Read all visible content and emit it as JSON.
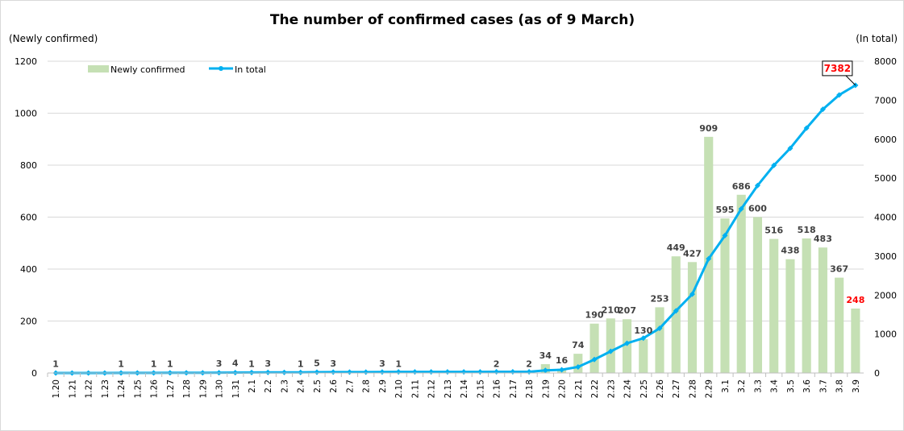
{
  "chart_data": {
    "type": "bar+line",
    "title": "The number of confirmed cases (as of 9 March)",
    "ylabel_left": "(Newly confirmed)",
    "ylabel_right": "(In total)",
    "ylim_left": [
      0,
      1200
    ],
    "ylim_right": [
      0,
      8000
    ],
    "yticks_left": [
      "0",
      "200",
      "400",
      "600",
      "800",
      "1000",
      "1200"
    ],
    "yticks_right": [
      "0",
      "1000",
      "2000",
      "3000",
      "4000",
      "5000",
      "6000",
      "7000",
      "8000"
    ],
    "grid": true,
    "legend_position": "top-left",
    "categories": [
      "1.20",
      "1.21",
      "1.22",
      "1.23",
      "1.24",
      "1.25",
      "1.26",
      "1.27",
      "1.28",
      "1.29",
      "1.30",
      "1.31",
      "2.1",
      "2.2",
      "2.3",
      "2.4",
      "2.5",
      "2.6",
      "2.7",
      "2.8",
      "2.9",
      "2.10",
      "2.11",
      "2.12",
      "2.13",
      "2.14",
      "2.15",
      "2.16",
      "2.17",
      "2.18",
      "2.19",
      "2.20",
      "2.21",
      "2.22",
      "2.23",
      "2.24",
      "2.25",
      "2.26",
      "2.27",
      "2.28",
      "2.29",
      "3.1",
      "3.2",
      "3.3",
      "3.4",
      "3.5",
      "3.6",
      "3.7",
      "3.8",
      "3.9"
    ],
    "series": [
      {
        "name": "Newly confirmed",
        "type": "bar",
        "axis": "left",
        "color": "#c5e0b4",
        "values": [
          1,
          0,
          0,
          0,
          1,
          0,
          1,
          1,
          0,
          0,
          3,
          4,
          1,
          3,
          0,
          1,
          5,
          3,
          0,
          0,
          3,
          1,
          0,
          0,
          0,
          0,
          0,
          2,
          0,
          2,
          34,
          16,
          74,
          190,
          210,
          207,
          130,
          253,
          449,
          427,
          909,
          595,
          686,
          600,
          516,
          438,
          518,
          483,
          367,
          248
        ]
      },
      {
        "name": "In total",
        "type": "line",
        "axis": "right",
        "color": "#00b0f0",
        "values": [
          1,
          1,
          1,
          1,
          2,
          2,
          3,
          4,
          4,
          4,
          7,
          11,
          12,
          15,
          15,
          16,
          21,
          24,
          24,
          24,
          27,
          28,
          28,
          28,
          28,
          28,
          28,
          30,
          30,
          32,
          66,
          82,
          156,
          346,
          556,
          763,
          893,
          1146,
          1595,
          2022,
          2931,
          3526,
          4212,
          4812,
          5328,
          5766,
          6284,
          6767,
          7134,
          7382
        ]
      }
    ],
    "annotations": {
      "last_total": "7382",
      "last_new": "248",
      "highlight_color": "#ff0000"
    }
  }
}
